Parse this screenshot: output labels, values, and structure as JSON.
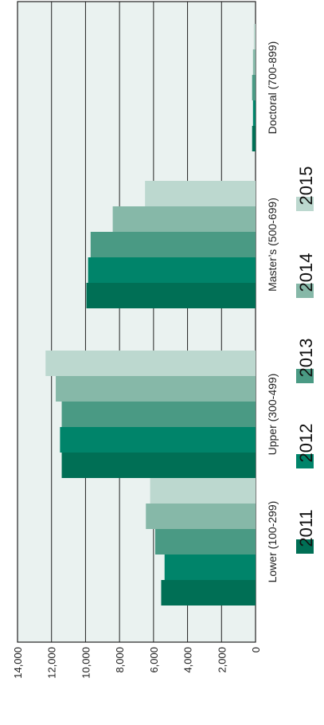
{
  "chart_data": {
    "type": "bar",
    "orientation": "horizontal",
    "categories": [
      "Lower (100-299)",
      "Upper (300-499)",
      "Master’s (500-699)",
      "Doctoral (700-899)"
    ],
    "series": [
      {
        "name": "2011",
        "values": [
          5550,
          11400,
          9950,
          200
        ],
        "color": "#006f55"
      },
      {
        "name": "2012",
        "values": [
          5350,
          11500,
          9850,
          150
        ],
        "color": "#00846a"
      },
      {
        "name": "2013",
        "values": [
          5900,
          11400,
          9700,
          200
        ],
        "color": "#4a9a84"
      },
      {
        "name": "2014",
        "values": [
          6450,
          11750,
          8400,
          150
        ],
        "color": "#86b8a8"
      },
      {
        "name": "2015",
        "values": [
          6200,
          12350,
          6500,
          100
        ],
        "color": "#bcd8cf"
      }
    ],
    "title": "",
    "xlabel": "",
    "ylabel": "",
    "xlim": [
      0,
      14000
    ],
    "ticks": [
      "0",
      "2,000",
      "4,000",
      "6,000",
      "8,000",
      "10,000",
      "12,000",
      "14,000"
    ],
    "grid": true,
    "legend_position": "right"
  }
}
